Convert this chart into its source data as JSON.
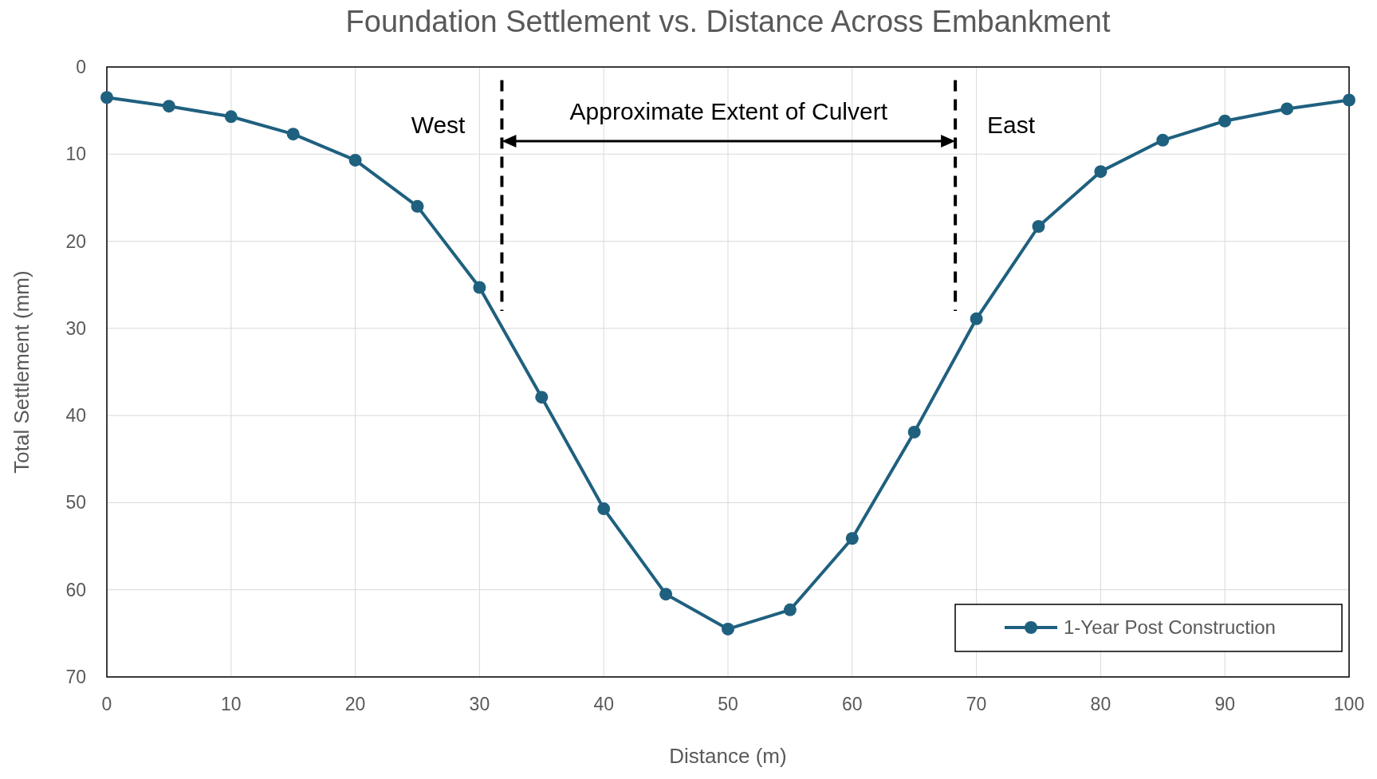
{
  "chart_data": {
    "type": "line",
    "title": "Foundation Settlement vs. Distance Across Embankment",
    "xlabel": "Distance (m)",
    "ylabel": "Total Settlement (mm)",
    "x": [
      0,
      5,
      10,
      15,
      20,
      25,
      30,
      35,
      40,
      45,
      50,
      55,
      60,
      65,
      70,
      75,
      80,
      85,
      90,
      95,
      100
    ],
    "series": [
      {
        "name": "1-Year Post Construction",
        "color": "#1f607f",
        "values": [
          3.5,
          4.5,
          5.7,
          7.7,
          10.7,
          16.0,
          25.3,
          37.9,
          50.7,
          60.5,
          64.5,
          62.3,
          54.1,
          41.9,
          28.9,
          18.3,
          12.0,
          8.4,
          6.2,
          4.8,
          3.8
        ]
      }
    ],
    "xlim": [
      0,
      100
    ],
    "xticks": [
      0,
      10,
      20,
      30,
      40,
      50,
      60,
      70,
      80,
      90,
      100
    ],
    "ylim": [
      70,
      0
    ],
    "yticks": [
      0,
      10,
      20,
      30,
      40,
      50,
      60,
      70
    ],
    "ref_lines": [
      {
        "axis": "x",
        "value": 31.8,
        "color": "#000000",
        "line_style": "dashed"
      },
      {
        "axis": "x",
        "value": 68.3,
        "color": "#000000",
        "line_style": "dashed"
      }
    ],
    "annotations": [
      "West",
      "Approximate Extent of Culvert",
      "East"
    ],
    "grid": true,
    "legend": "bottom right",
    "marker": "circle",
    "line_style": "solid"
  }
}
